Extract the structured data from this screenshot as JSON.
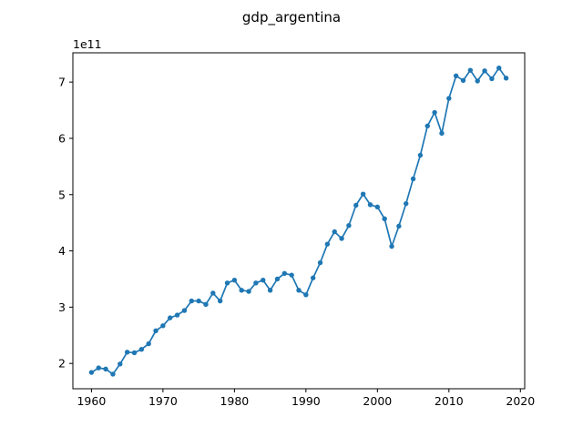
{
  "chart_data": {
    "type": "line",
    "title": "gdp_argentina",
    "xlabel": "",
    "ylabel": "",
    "y_offset_label": "1e11",
    "xlim": [
      1957.4,
      2020.6
    ],
    "ylim": [
      1.55,
      7.52
    ],
    "x_ticks": [
      1960,
      1970,
      1980,
      1990,
      2000,
      2010,
      2020
    ],
    "y_ticks": [
      2,
      3,
      4,
      5,
      6,
      7
    ],
    "x_tick_labels": [
      "1960",
      "1970",
      "1980",
      "1990",
      "2000",
      "2010",
      "2020"
    ],
    "y_tick_labels": [
      "2",
      "3",
      "4",
      "5",
      "6",
      "7"
    ],
    "grid": false,
    "legend": "none",
    "series": [
      {
        "color": "#1f77b4",
        "marker": "circle",
        "x": [
          1960,
          1961,
          1962,
          1963,
          1964,
          1965,
          1966,
          1967,
          1968,
          1969,
          1970,
          1971,
          1972,
          1973,
          1974,
          1975,
          1976,
          1977,
          1978,
          1979,
          1980,
          1981,
          1982,
          1983,
          1984,
          1985,
          1986,
          1987,
          1988,
          1989,
          1990,
          1991,
          1992,
          1993,
          1994,
          1995,
          1996,
          1997,
          1998,
          1999,
          2000,
          2001,
          2002,
          2003,
          2004,
          2005,
          2006,
          2007,
          2008,
          2009,
          2010,
          2011,
          2012,
          2013,
          2014,
          2015,
          2016,
          2017,
          2018
        ],
        "y": [
          1.84,
          1.92,
          1.9,
          1.81,
          1.99,
          2.2,
          2.19,
          2.25,
          2.35,
          2.58,
          2.67,
          2.81,
          2.86,
          2.94,
          3.11,
          3.11,
          3.05,
          3.25,
          3.11,
          3.43,
          3.48,
          3.3,
          3.28,
          3.43,
          3.48,
          3.3,
          3.5,
          3.6,
          3.57,
          3.3,
          3.22,
          3.52,
          3.79,
          4.12,
          4.34,
          4.22,
          4.45,
          4.81,
          5.01,
          4.82,
          4.78,
          4.57,
          4.08,
          4.44,
          4.84,
          5.28,
          5.7,
          6.22,
          6.46,
          6.09,
          6.71,
          7.11,
          7.03,
          7.21,
          7.02,
          7.2,
          7.06,
          7.25,
          7.07
        ]
      }
    ]
  }
}
